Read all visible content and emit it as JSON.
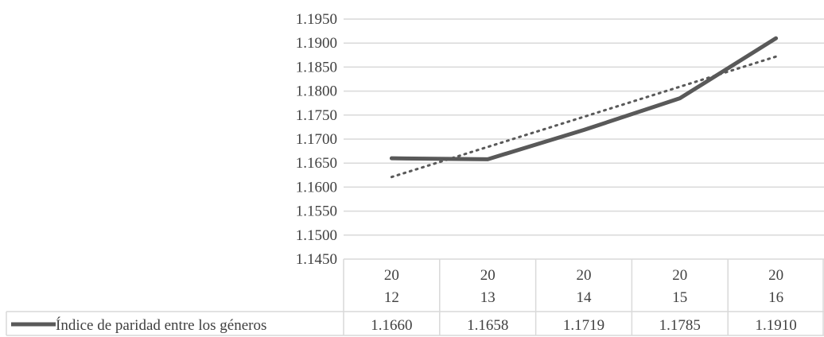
{
  "chart_data": {
    "type": "line",
    "title": "",
    "xlabel": "",
    "ylabel": "",
    "ylim": [
      1.145,
      1.195
    ],
    "y_ticks": [
      "1.1450",
      "1.1500",
      "1.1550",
      "1.1600",
      "1.1650",
      "1.1700",
      "1.1750",
      "1.1800",
      "1.1850",
      "1.1900",
      "1.1950"
    ],
    "categories": [
      [
        "20",
        "12"
      ],
      [
        "20",
        "13"
      ],
      [
        "20",
        "14"
      ],
      [
        "20",
        "15"
      ],
      [
        "20",
        "16"
      ]
    ],
    "series": [
      {
        "name": "Índice de paridad entre los géneros",
        "values": [
          1.166,
          1.1658,
          1.1719,
          1.1785,
          1.191
        ],
        "value_labels": [
          "1.1660",
          "1.1658",
          "1.1719",
          "1.1785",
          "1.1910"
        ],
        "color": "#595959"
      }
    ],
    "trendline": {
      "type": "linear",
      "style": "dotted",
      "color": "#595959"
    },
    "grid": true,
    "legend": "data-table-left"
  }
}
